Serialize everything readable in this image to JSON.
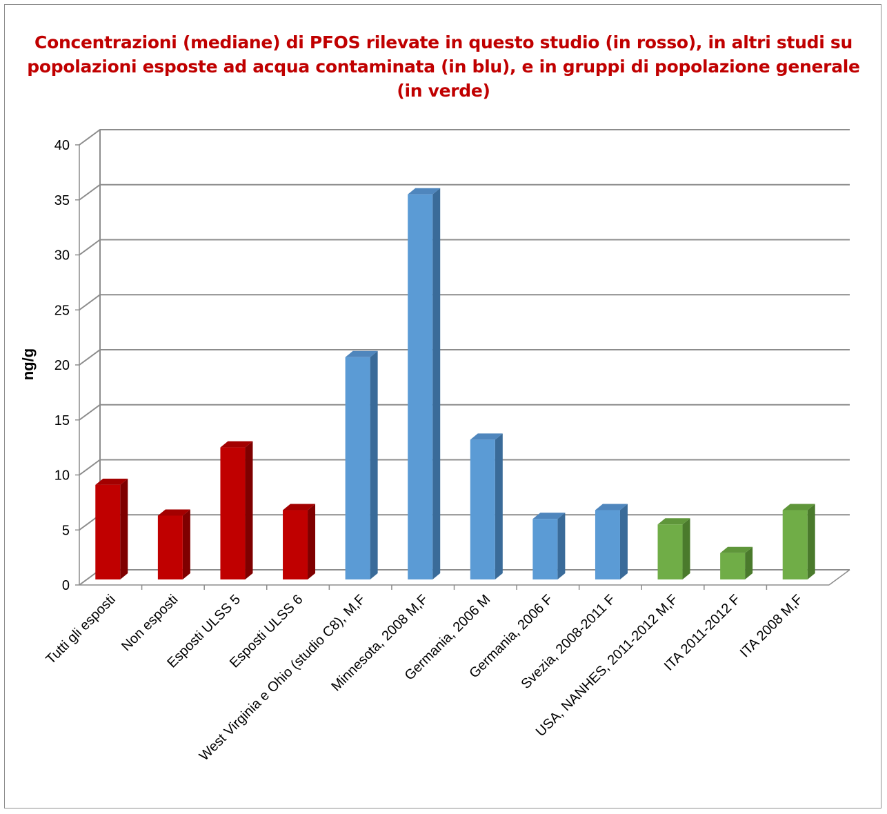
{
  "chart_data": {
    "type": "bar",
    "title": "Concentrazioni (mediane) di PFOS rilevate in questo studio (in rosso), in altri studi su popolazioni esposte ad acqua contaminata (in blu), e in gruppi di popolazione generale (in verde)",
    "xlabel": "",
    "ylabel": "ng/g",
    "ylim": [
      0,
      40
    ],
    "yticks": [
      0,
      5,
      10,
      15,
      20,
      25,
      30,
      35,
      40
    ],
    "grid": true,
    "categories": [
      "Tutti gli esposti",
      "Non esposti",
      "Esposti ULSS 5",
      "Esposti ULSS 6",
      "West Virginia e Ohio (studio C8), M,F",
      "Minnesota, 2008 M,F",
      "Germania, 2006 M",
      "Germania, 2006 F",
      "Svezia, 2008-2011 F",
      "USA, NANHES, 2011-2012 M,F",
      "ITA 2011-2012 F",
      "ITA 2008 M,F"
    ],
    "values": [
      8.6,
      5.8,
      12.0,
      6.3,
      20.2,
      35.0,
      12.7,
      5.5,
      6.3,
      5.0,
      2.4,
      6.3
    ],
    "colors": [
      "#c00000",
      "#c00000",
      "#c00000",
      "#c00000",
      "#5b9bd5",
      "#5b9bd5",
      "#5b9bd5",
      "#5b9bd5",
      "#5b9bd5",
      "#70ad47",
      "#70ad47",
      "#70ad47"
    ],
    "dark_colors": [
      "#7f0000",
      "#7f0000",
      "#7f0000",
      "#7f0000",
      "#3a6b99",
      "#3a6b99",
      "#3a6b99",
      "#3a6b99",
      "#3a6b99",
      "#4a7a2c",
      "#4a7a2c",
      "#4a7a2c"
    ],
    "top_colors": [
      "#a30000",
      "#a30000",
      "#a30000",
      "#a30000",
      "#4f86bd",
      "#4f86bd",
      "#4f86bd",
      "#4f86bd",
      "#4f86bd",
      "#5f963a",
      "#5f963a",
      "#5f963a"
    ],
    "group_legend": {
      "red": "questo studio",
      "blue": "altri studi su popolazioni esposte ad acqua contaminata",
      "green": "gruppi di popolazione generale"
    }
  }
}
